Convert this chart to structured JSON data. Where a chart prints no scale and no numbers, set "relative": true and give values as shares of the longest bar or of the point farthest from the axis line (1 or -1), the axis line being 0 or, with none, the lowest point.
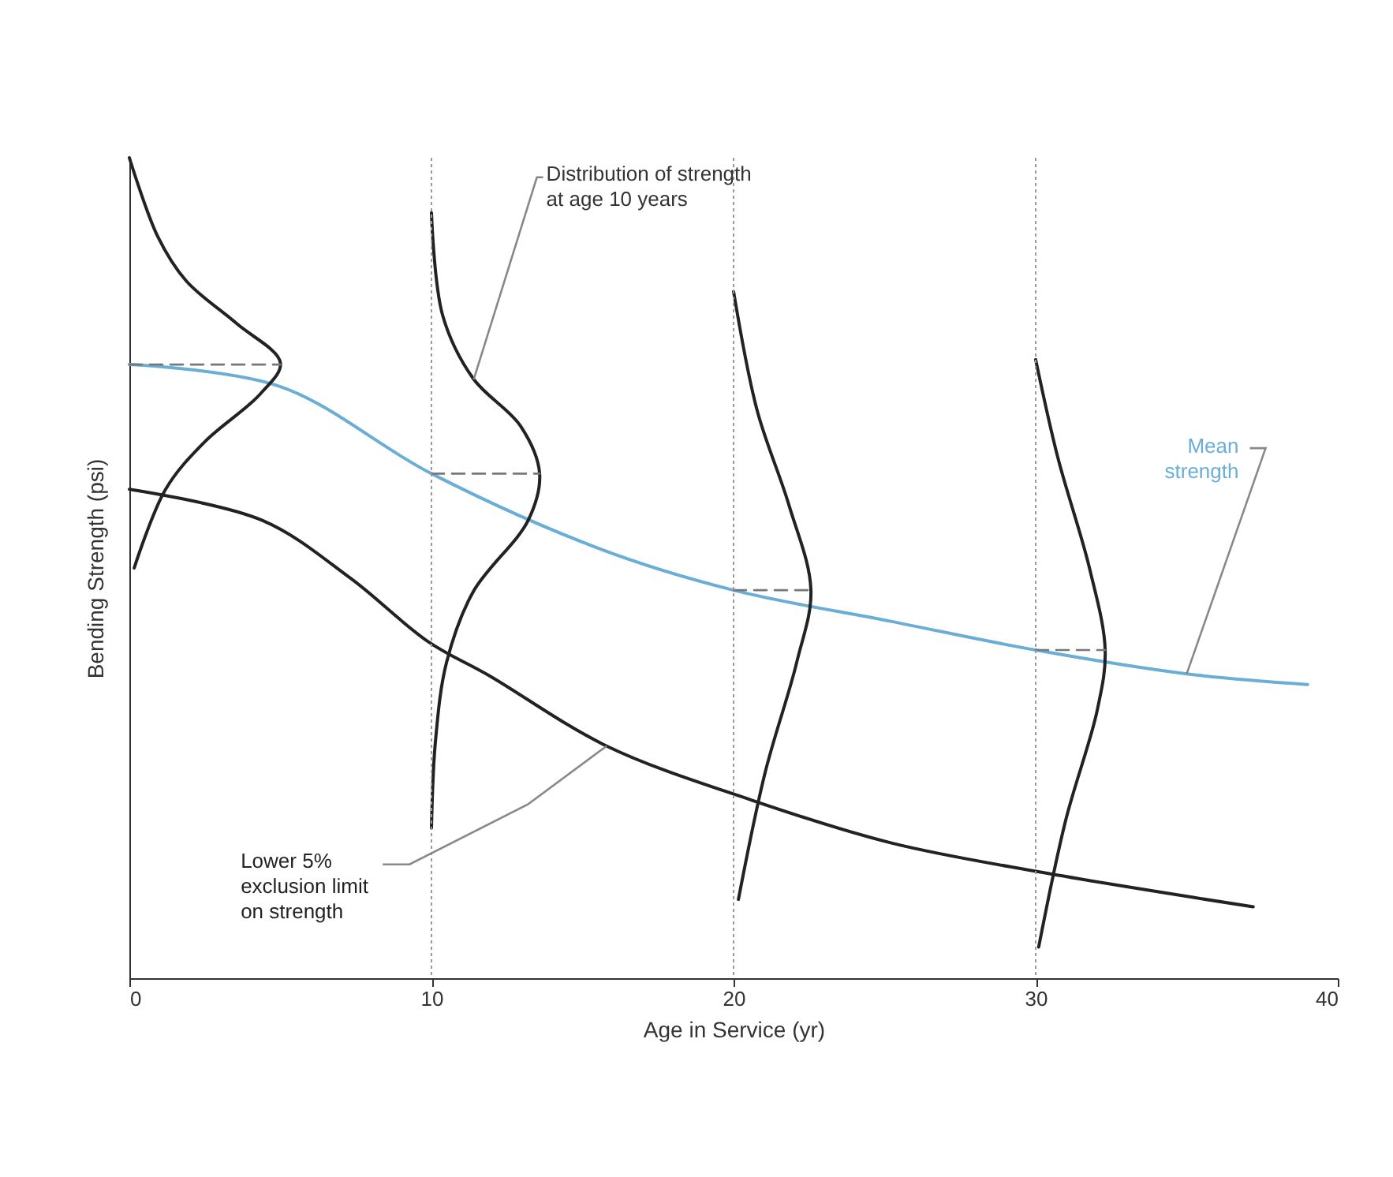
{
  "chart_data": {
    "type": "line",
    "relative": true,
    "xlabel": "Age in Service (yr)",
    "ylabel": "Bending Strength (psi)",
    "xlim": [
      0,
      40
    ],
    "xticks": [
      0,
      10,
      20,
      30,
      40
    ],
    "series": [
      {
        "name": "Mean strength",
        "color": "#6aaed6",
        "x": [
          0,
          5,
          10,
          15.6,
          20,
          25.2,
          30,
          35,
          39
        ],
        "values": [
          0.748,
          0.721,
          0.615,
          0.523,
          0.473,
          0.435,
          0.4,
          0.371,
          0.358
        ]
      },
      {
        "name": "Lower 5% exclusion limit on strength",
        "color": "#222222",
        "x": [
          0,
          4.4,
          7.3,
          9.9,
          11.9,
          15.8,
          20.6,
          25.2,
          30.2,
          37.2
        ],
        "values": [
          0.596,
          0.558,
          0.488,
          0.41,
          0.369,
          0.283,
          0.217,
          0.165,
          0.129,
          0.087
        ]
      },
      {
        "color": "#222222",
        "x": [
          0,
          0.94,
          1.88,
          3.55,
          5.0,
          4.33,
          2.5,
          1.2,
          0.16
        ],
        "values": [
          1.0,
          0.904,
          0.85,
          0.798,
          0.75,
          0.712,
          0.654,
          0.596,
          0.5
        ]
      },
      {
        "color": "#222222",
        "x": [
          10,
          10.37,
          11.38,
          12.95,
          13.58,
          13.2,
          11.38,
          10.5,
          10.13,
          10
        ],
        "values": [
          0.933,
          0.808,
          0.731,
          0.673,
          0.615,
          0.558,
          0.471,
          0.385,
          0.288,
          0.183
        ]
      },
      {
        "color": "#222222",
        "x": [
          20,
          20.78,
          21.83,
          22.56,
          22.09,
          21.04,
          20.16
        ],
        "values": [
          0.837,
          0.692,
          0.577,
          0.473,
          0.385,
          0.25,
          0.096
        ]
      },
      {
        "color": "#222222",
        "x": [
          30,
          30.73,
          31.78,
          32.3,
          32.04,
          30.99,
          30.1
        ],
        "values": [
          0.754,
          0.635,
          0.5,
          0.4,
          0.327,
          0.192,
          0.038
        ]
      },
      {
        "color": "#777777",
        "line_style": "dashed",
        "x": [
          0,
          5.0
        ],
        "values": [
          0.748,
          0.748
        ]
      },
      {
        "color": "#777777",
        "line_style": "dashed",
        "x": [
          10,
          13.58
        ],
        "values": [
          0.615,
          0.615
        ]
      },
      {
        "color": "#777777",
        "line_style": "dashed",
        "x": [
          20,
          22.56
        ],
        "values": [
          0.473,
          0.473
        ]
      },
      {
        "color": "#777777",
        "line_style": "dashed",
        "x": [
          30,
          32.3
        ],
        "values": [
          0.4,
          0.4
        ]
      }
    ],
    "ref_lines": [
      {
        "axis": "x",
        "value": 10,
        "color": "#999999",
        "line_style": "dotted"
      },
      {
        "axis": "x",
        "value": 20,
        "color": "#999999",
        "line_style": "dotted"
      },
      {
        "axis": "x",
        "value": 30,
        "color": "#999999",
        "line_style": "dotted"
      }
    ],
    "annotations": [
      {
        "text": "Distribution of strength\nat age 10 years",
        "x": 11.4,
        "y": 0.73
      }
    ]
  }
}
